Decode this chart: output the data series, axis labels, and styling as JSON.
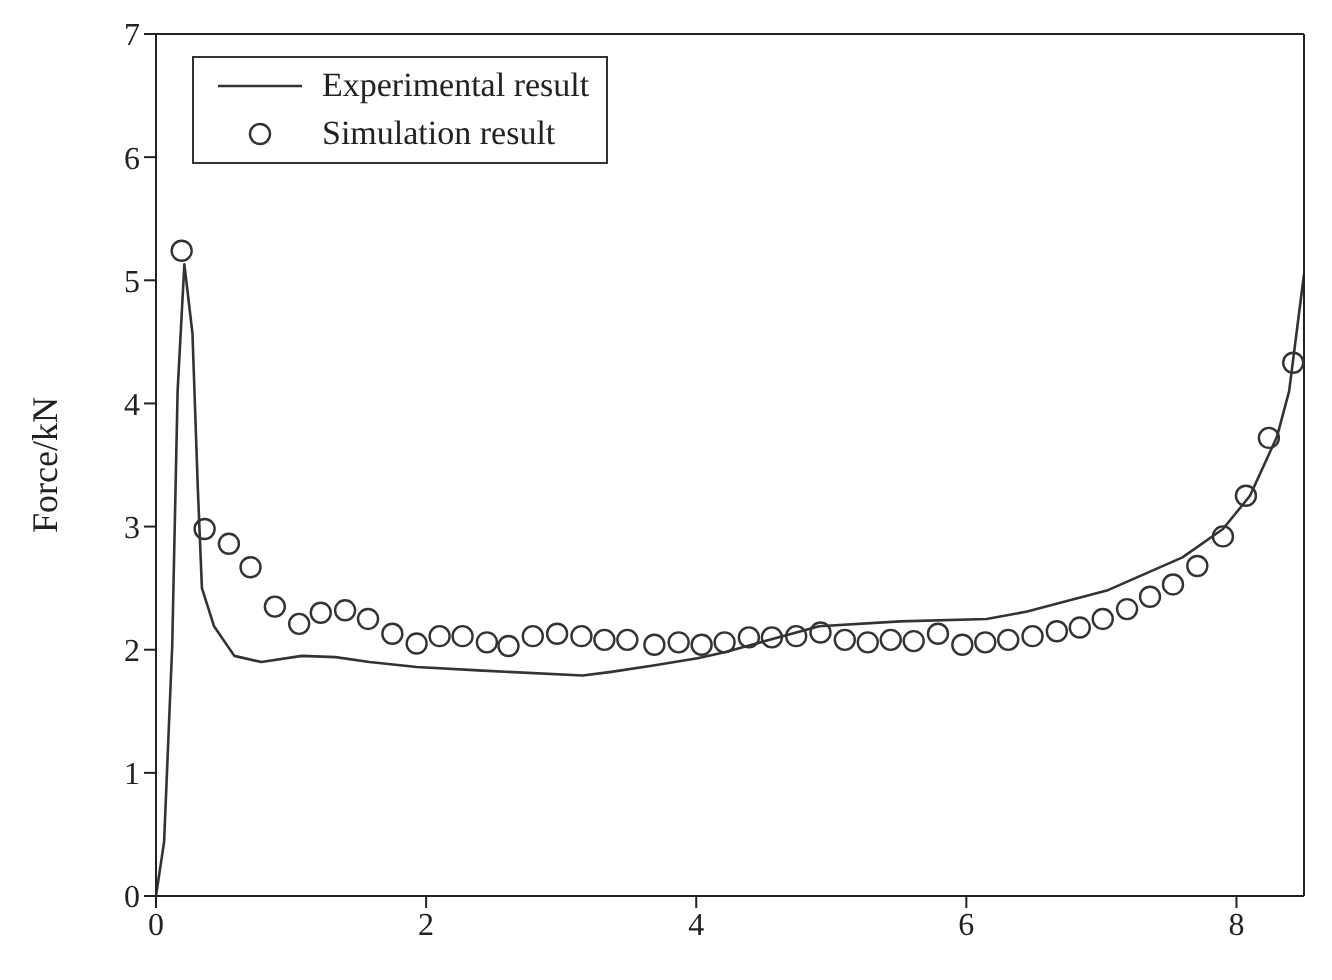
{
  "chart_data": {
    "type": "line",
    "ylabel": "Force/kN",
    "xlim": [
      0,
      8.5
    ],
    "xticks": [
      0,
      2,
      4,
      6,
      8
    ],
    "ylim": [
      0,
      7
    ],
    "yticks": [
      0,
      1,
      2,
      3,
      4,
      5,
      6,
      7
    ],
    "legend": "top left",
    "series": [
      {
        "name": "Experimental result",
        "color": "#333333",
        "marker": "none",
        "line_style": "solid",
        "x": [
          0,
          0.06,
          0.12,
          0.16,
          0.21,
          0.27,
          0.31,
          0.34,
          0.43,
          0.58,
          0.78,
          1.08,
          1.33,
          1.58,
          1.93,
          2.42,
          3.16,
          3.37,
          3.67,
          4.01,
          4.21,
          4.91,
          5.51,
          6.15,
          6.45,
          7.04,
          7.6,
          7.9,
          8.1,
          8.3,
          8.39,
          8.5
        ],
        "values": [
          0,
          0.44,
          2.03,
          4.1,
          5.13,
          4.57,
          3.3,
          2.5,
          2.19,
          1.95,
          1.9,
          1.95,
          1.94,
          1.9,
          1.86,
          1.83,
          1.79,
          1.82,
          1.87,
          1.93,
          1.98,
          2.19,
          2.23,
          2.25,
          2.31,
          2.48,
          2.75,
          2.98,
          3.25,
          3.73,
          4.1,
          5.05
        ]
      },
      {
        "name": "Simulation result",
        "type": "scatter",
        "color": "#333333",
        "marker": "circle",
        "x": [
          0.19,
          0.36,
          0.54,
          0.7,
          0.88,
          1.06,
          1.22,
          1.4,
          1.57,
          1.75,
          1.93,
          2.1,
          2.27,
          2.45,
          2.61,
          2.79,
          2.97,
          3.15,
          3.32,
          3.49,
          3.69,
          3.87,
          4.04,
          4.21,
          4.39,
          4.56,
          4.74,
          4.92,
          5.1,
          5.27,
          5.44,
          5.61,
          5.79,
          5.97,
          6.14,
          6.31,
          6.49,
          6.67,
          6.84,
          7.01,
          7.19,
          7.36,
          7.53,
          7.71,
          7.9,
          8.07,
          8.24,
          8.42
        ],
        "values": [
          5.24,
          2.98,
          2.86,
          2.67,
          2.35,
          2.21,
          2.3,
          2.32,
          2.25,
          2.13,
          2.05,
          2.11,
          2.11,
          2.06,
          2.03,
          2.11,
          2.13,
          2.11,
          2.08,
          2.08,
          2.04,
          2.06,
          2.04,
          2.06,
          2.1,
          2.1,
          2.11,
          2.14,
          2.08,
          2.06,
          2.08,
          2.07,
          2.13,
          2.04,
          2.06,
          2.08,
          2.11,
          2.15,
          2.18,
          2.25,
          2.33,
          2.43,
          2.53,
          2.68,
          2.92,
          3.25,
          3.72,
          4.33
        ]
      }
    ]
  }
}
